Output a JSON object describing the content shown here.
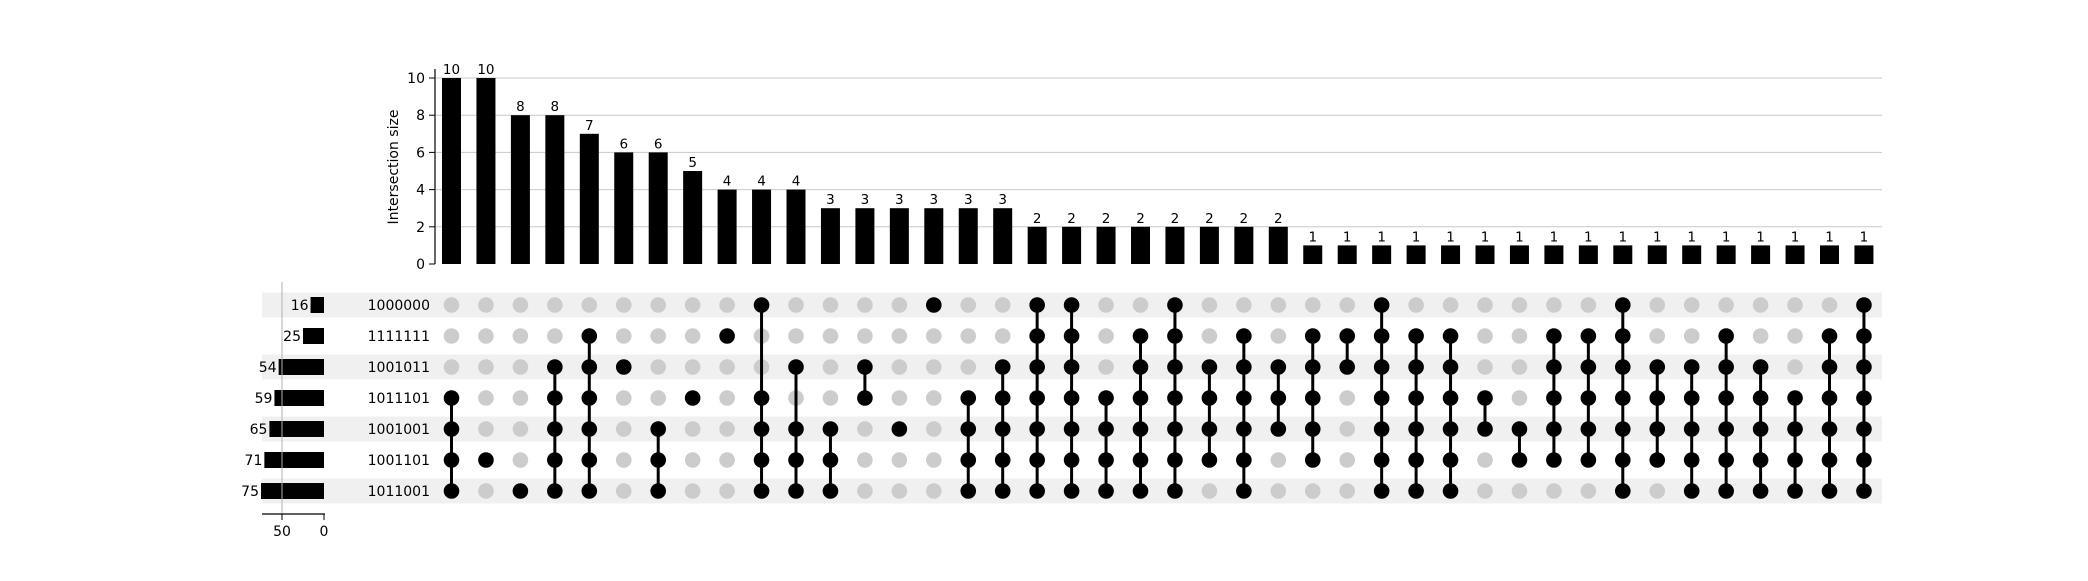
{
  "chart_data": {
    "type": "upset",
    "ylabel": "Intersection size",
    "y_ticks": [
      0,
      2,
      4,
      6,
      8,
      10
    ],
    "ylim": [
      0,
      10.3
    ],
    "set_size_ticks": [
      50,
      0
    ],
    "set_size_xlim": [
      75,
      0
    ],
    "colors": {
      "bar": "#000000",
      "dot_on": "#000000",
      "dot_off": "#cccccc",
      "stripe": "#f0f0f0",
      "grid": "#c8c8c8"
    },
    "sets": [
      {
        "name": "1000000",
        "size": 16
      },
      {
        "name": "1111111",
        "size": 25
      },
      {
        "name": "1001011",
        "size": 54
      },
      {
        "name": "1011101",
        "size": 59
      },
      {
        "name": "1001001",
        "size": 65
      },
      {
        "name": "1001101",
        "size": 71
      },
      {
        "name": "1011001",
        "size": 75
      }
    ],
    "intersections": [
      {
        "size": 10,
        "members": [
          3,
          4,
          5,
          6
        ]
      },
      {
        "size": 10,
        "members": [
          5
        ]
      },
      {
        "size": 8,
        "members": [
          6
        ]
      },
      {
        "size": 8,
        "members": [
          2,
          3,
          4,
          5,
          6
        ]
      },
      {
        "size": 7,
        "members": [
          1,
          2,
          3,
          4,
          5,
          6
        ]
      },
      {
        "size": 6,
        "members": [
          2
        ]
      },
      {
        "size": 6,
        "members": [
          4,
          5,
          6
        ]
      },
      {
        "size": 5,
        "members": [
          3
        ]
      },
      {
        "size": 4,
        "members": [
          1
        ]
      },
      {
        "size": 4,
        "members": [
          0,
          3,
          4,
          5,
          6
        ]
      },
      {
        "size": 4,
        "members": [
          2,
          4,
          5,
          6
        ]
      },
      {
        "size": 3,
        "members": [
          4,
          5,
          6
        ]
      },
      {
        "size": 3,
        "members": [
          2,
          3
        ]
      },
      {
        "size": 3,
        "members": [
          4
        ]
      },
      {
        "size": 3,
        "members": [
          0
        ]
      },
      {
        "size": 3,
        "members": [
          3,
          4,
          5,
          6
        ]
      },
      {
        "size": 3,
        "members": [
          2,
          3,
          4,
          5,
          6
        ]
      },
      {
        "size": 2,
        "members": [
          0,
          1,
          2,
          3,
          4,
          5,
          6
        ]
      },
      {
        "size": 2,
        "members": [
          0,
          1,
          2,
          3,
          4,
          5,
          6
        ]
      },
      {
        "size": 2,
        "members": [
          3,
          4,
          5,
          6
        ]
      },
      {
        "size": 2,
        "members": [
          1,
          2,
          3,
          4,
          5,
          6
        ]
      },
      {
        "size": 2,
        "members": [
          0,
          1,
          2,
          3,
          4,
          5,
          6
        ]
      },
      {
        "size": 2,
        "members": [
          2,
          3,
          4,
          5
        ]
      },
      {
        "size": 2,
        "members": [
          1,
          2,
          3,
          4,
          5,
          6
        ]
      },
      {
        "size": 2,
        "members": [
          2,
          3,
          4
        ]
      },
      {
        "size": 1,
        "members": [
          1,
          2,
          3,
          4,
          5
        ]
      },
      {
        "size": 1,
        "members": [
          1,
          2
        ]
      },
      {
        "size": 1,
        "members": [
          0,
          1,
          2,
          3,
          4,
          5,
          6
        ]
      },
      {
        "size": 1,
        "members": [
          1,
          2,
          3,
          4,
          5,
          6
        ]
      },
      {
        "size": 1,
        "members": [
          1,
          2,
          3,
          4,
          5,
          6
        ]
      },
      {
        "size": 1,
        "members": [
          3,
          4
        ]
      },
      {
        "size": 1,
        "members": [
          4,
          5
        ]
      },
      {
        "size": 1,
        "members": [
          1,
          2,
          3,
          4,
          5
        ]
      },
      {
        "size": 1,
        "members": [
          1,
          2,
          3,
          4,
          5
        ]
      },
      {
        "size": 1,
        "members": [
          0,
          1,
          2,
          3,
          4,
          5,
          6
        ]
      },
      {
        "size": 1,
        "members": [
          2,
          3,
          4,
          5
        ]
      },
      {
        "size": 1,
        "members": [
          2,
          3,
          4,
          5,
          6
        ]
      },
      {
        "size": 1,
        "members": [
          1,
          2,
          3,
          4,
          5,
          6
        ]
      },
      {
        "size": 1,
        "members": [
          2,
          3,
          4,
          5,
          6
        ]
      },
      {
        "size": 1,
        "members": [
          3,
          4,
          5,
          6
        ]
      },
      {
        "size": 1,
        "members": [
          1,
          2,
          3,
          4,
          5,
          6
        ]
      },
      {
        "size": 1,
        "members": [
          0,
          1,
          2,
          3,
          4,
          5,
          6
        ]
      }
    ]
  }
}
